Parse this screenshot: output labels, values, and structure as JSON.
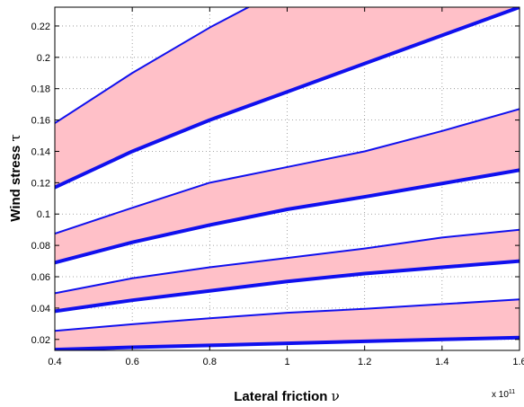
{
  "chart_data": {
    "type": "area",
    "xlabel": "Lateral friction",
    "xlabel_symbol": "ν",
    "ylabel": "Wind stress",
    "ylabel_symbol": "τ",
    "x_multiplier_base": "x 10",
    "x_multiplier_exponent": "11",
    "xlim": [
      0.4,
      1.6
    ],
    "ylim": [
      0.013,
      0.232
    ],
    "x_ticks": [
      0.4,
      0.6,
      0.8,
      1,
      1.2,
      1.4,
      1.6
    ],
    "x_tick_labels": [
      "0.4",
      "0.6",
      "0.8",
      "1",
      "1.2",
      "1.4",
      "1.6"
    ],
    "y_ticks": [
      0.02,
      0.04,
      0.06,
      0.08,
      0.1,
      0.12,
      0.14,
      0.16,
      0.18,
      0.2,
      0.22
    ],
    "y_tick_labels": [
      "0.02",
      "0.04",
      "0.06",
      "0.08",
      "0.1",
      "0.12",
      "0.14",
      "0.16",
      "0.18",
      "0.2",
      "0.22"
    ],
    "grid": true,
    "colors": {
      "band": "#ffc0c8",
      "boundary": "#1010ee"
    },
    "bands": [
      {
        "x": [
          0.4,
          0.6,
          0.8,
          1.0,
          1.2,
          1.4,
          1.6
        ],
        "lower": [
          0.0135,
          0.015,
          0.0162,
          0.0175,
          0.0188,
          0.02,
          0.0212
        ],
        "upper": [
          0.0255,
          0.0297,
          0.0335,
          0.037,
          0.0395,
          0.0425,
          0.0455
        ]
      },
      {
        "x": [
          0.4,
          0.6,
          0.8,
          1.0,
          1.2,
          1.4,
          1.6
        ],
        "lower": [
          0.038,
          0.045,
          0.051,
          0.057,
          0.062,
          0.066,
          0.07
        ],
        "upper": [
          0.0495,
          0.059,
          0.066,
          0.072,
          0.078,
          0.085,
          0.09
        ]
      },
      {
        "x": [
          0.4,
          0.6,
          0.8,
          1.0,
          1.2,
          1.4,
          1.6
        ],
        "lower": [
          0.069,
          0.082,
          0.093,
          0.103,
          0.111,
          0.1195,
          0.128
        ],
        "upper": [
          0.0875,
          0.104,
          0.12,
          0.13,
          0.14,
          0.153,
          0.167
        ]
      },
      {
        "x": [
          0.4,
          0.6,
          0.8,
          1.0,
          1.2,
          1.4,
          1.6
        ],
        "lower": [
          0.117,
          0.14,
          0.16,
          0.178,
          0.196,
          0.214,
          0.232
        ],
        "upper": [
          0.158,
          0.19,
          0.219,
          0.245,
          0.265,
          0.285,
          0.305
        ]
      }
    ]
  }
}
